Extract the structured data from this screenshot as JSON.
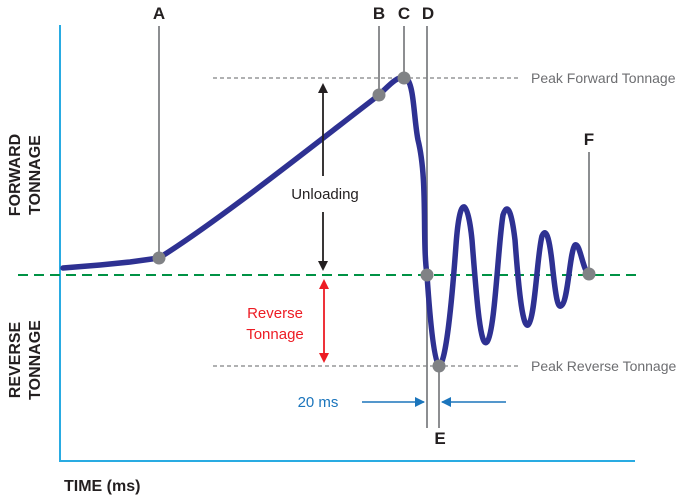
{
  "labels": {
    "point_a": "A",
    "point_b": "B",
    "point_c": "C",
    "point_d": "D",
    "point_e": "E",
    "point_f": "F",
    "forward_line1": "FORWARD",
    "forward_line2": "TONNAGE",
    "reverse_line1": "REVERSE",
    "reverse_line2": "TONNAGE",
    "x_axis": "TIME (ms)",
    "peak_forward": "Peak Forward Tonnage",
    "peak_reverse": "Peak Reverse Tonnage",
    "unloading": "Unloading",
    "reverse_tonnage_line1": "Reverse",
    "reverse_tonnage_line2": "Tonnage",
    "duration": "20 ms"
  },
  "colors": {
    "axis": "#29abe2",
    "curve": "#2e3192",
    "zero_line": "#009245",
    "reference_line": "#808285",
    "marker": "#808285",
    "unloading_arrow": "#231f20",
    "reverse_arrow": "#ed1c24",
    "duration_arrow": "#1b75bc"
  }
}
